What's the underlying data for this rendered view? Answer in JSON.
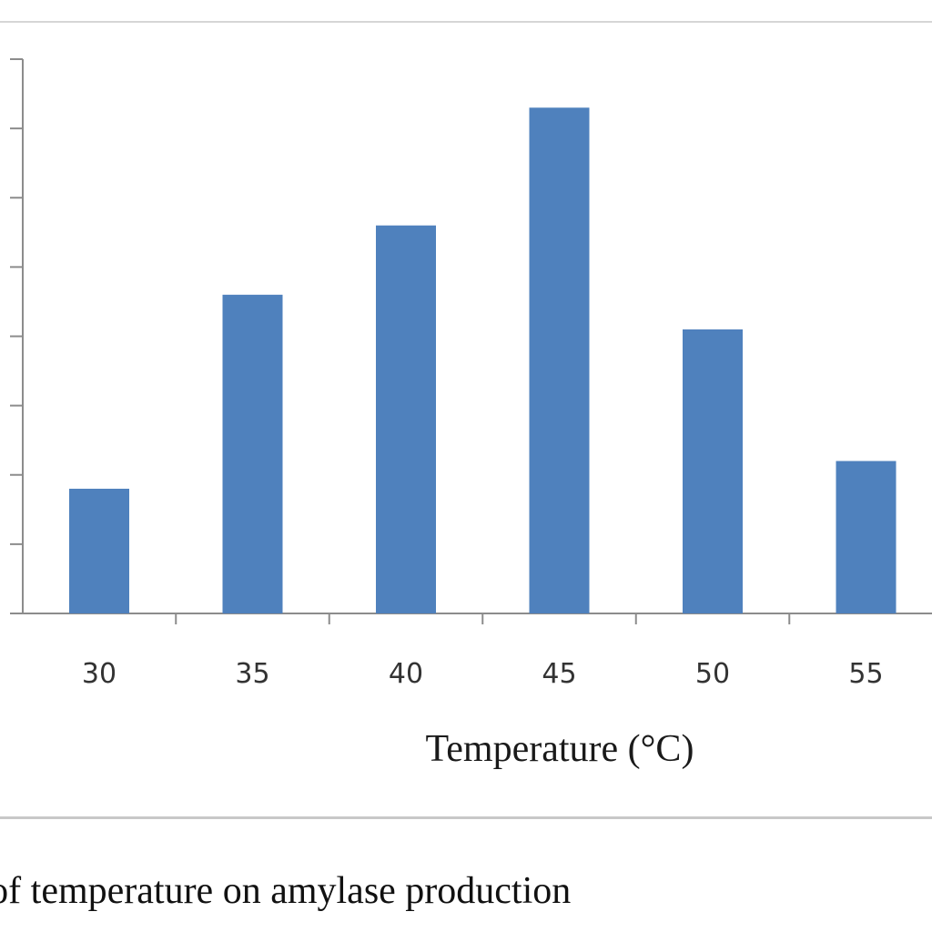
{
  "chart_data": {
    "type": "bar",
    "categories": [
      "30",
      "35",
      "40",
      "45",
      "50",
      "55"
    ],
    "values": [
      1.8,
      4.6,
      5.6,
      7.3,
      4.1,
      2.2
    ],
    "xlabel": "Temperature (°C)",
    "ylabel": "",
    "ylim": [
      0,
      8
    ],
    "yticks": [
      0,
      1,
      2,
      3,
      4,
      5,
      6,
      7,
      8
    ],
    "grid": false,
    "bar_color": "#4f81bd",
    "axis_color": "#8c8c8c"
  },
  "caption": {
    "text": "t of temperature on amylase production"
  }
}
